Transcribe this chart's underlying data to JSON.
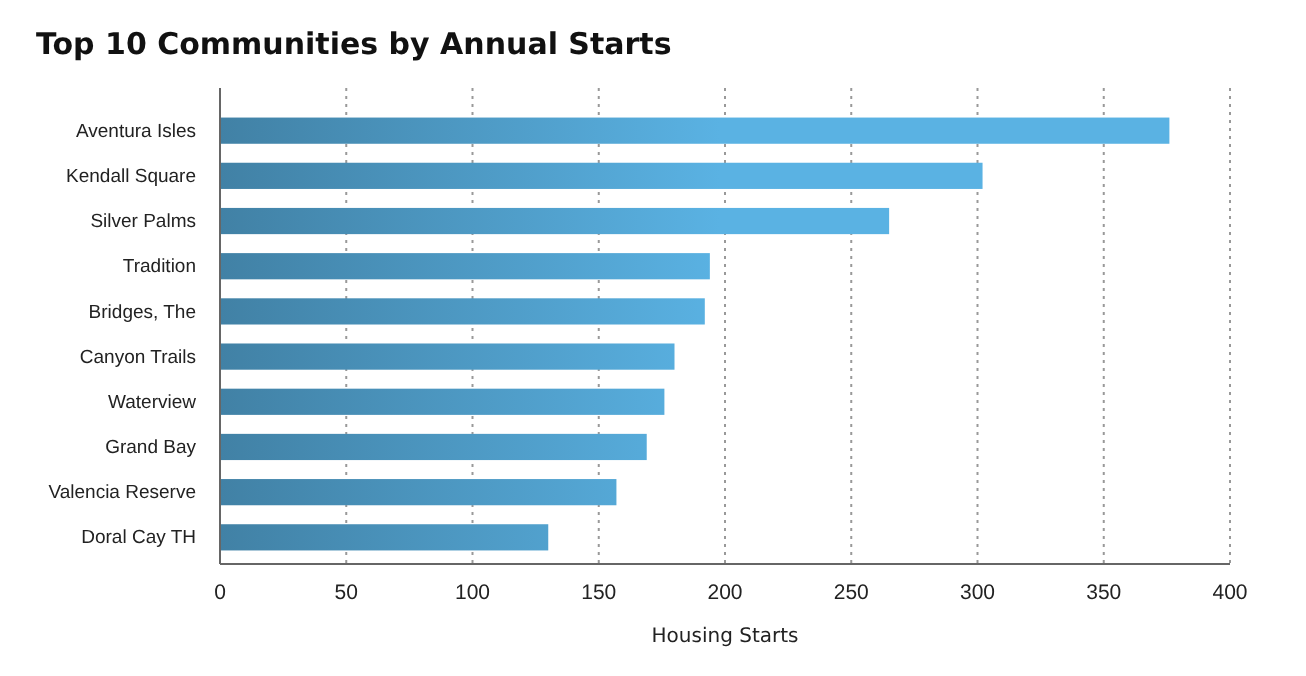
{
  "chart_data": {
    "type": "bar",
    "title": "Top 10 Communities by Annual Starts",
    "xlabel": "Housing Starts",
    "orientation": "horizontal",
    "categories": [
      "Aventura Isles",
      "Kendall Square",
      "Silver Palms",
      "Tradition",
      "Bridges, The",
      "Canyon Trails",
      "Waterview",
      "Grand Bay",
      "Valencia Reserve",
      "Doral Cay TH"
    ],
    "values": [
      376,
      302,
      265,
      194,
      192,
      180,
      176,
      169,
      157,
      130
    ],
    "color": "#5ab2e3",
    "xlim": [
      0,
      400
    ],
    "xticks": [
      0,
      50,
      100,
      150,
      200,
      250,
      300,
      350,
      400
    ],
    "grid": "x"
  }
}
